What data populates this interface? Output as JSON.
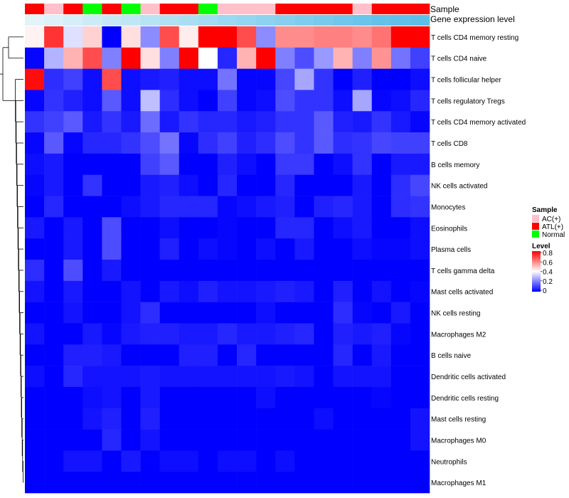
{
  "chart_data": {
    "type": "heatmap",
    "annotation_titles": [
      "Sample",
      "Gene expression level"
    ],
    "columns": 21,
    "sample_groups": [
      "ATL(+)",
      "AC(+)",
      "ATL(+)",
      "Normal",
      "ATL(+)",
      "Normal",
      "AC(+)",
      "ATL(+)",
      "ATL(+)",
      "Normal",
      "AC(+)",
      "AC(+)",
      "AC(+)",
      "ATL(+)",
      "ATL(+)",
      "ATL(+)",
      "ATL(+)",
      "AC(+)",
      "ATL(+)",
      "ATL(+)",
      "ATL(+)"
    ],
    "expression_band": [
      0.05,
      0.1,
      0.15,
      0.2,
      0.25,
      0.3,
      0.35,
      0.4,
      0.45,
      0.5,
      0.55,
      0.6,
      0.65,
      0.7,
      0.75,
      0.8,
      0.85,
      0.9,
      0.95,
      0.97,
      1.0
    ],
    "rows": [
      "T cells CD4 memory resting",
      "T cells CD4 naive",
      "T cells follicular helper",
      "T cells regulatory  Tregs",
      "T cells CD4 memory activated",
      "T cells CD8",
      "B cells memory",
      "NK cells activated",
      "Monocytes",
      "Eosinophils",
      "Plasma cells",
      "T cells gamma delta",
      "Mast cells activated",
      "NK cells resting",
      "Macrophages M2",
      "B cells naive",
      "Dendritic cells activated",
      "Dendritic cells resting",
      "Mast cells resting",
      "Macrophages M0",
      "Neutrophils",
      "Macrophages M1"
    ],
    "values": [
      [
        0.42,
        0.72,
        0.35,
        0.47,
        0.0,
        0.45,
        0.22,
        0.68,
        0.43,
        0.82,
        0.85,
        0.68,
        0.22,
        0.58,
        0.58,
        0.6,
        0.6,
        0.58,
        0.62,
        0.82,
        0.82
      ],
      [
        0.01,
        0.28,
        0.52,
        0.68,
        0.2,
        0.8,
        0.45,
        0.2,
        0.8,
        0.4,
        0.06,
        0.52,
        0.8,
        0.2,
        0.12,
        0.24,
        0.52,
        0.2,
        0.57,
        0.18,
        0.1
      ],
      [
        0.78,
        0.07,
        0.1,
        0.02,
        0.68,
        0.02,
        0.04,
        0.05,
        0.02,
        0.02,
        0.18,
        0.01,
        0.01,
        0.11,
        0.26,
        0.08,
        0.0,
        0.05,
        0.0,
        0.0,
        0.02
      ],
      [
        0.01,
        0.08,
        0.05,
        0.02,
        0.14,
        0.02,
        0.3,
        0.07,
        0.02,
        0.0,
        0.1,
        0.01,
        0.02,
        0.12,
        0.08,
        0.08,
        0.02,
        0.26,
        0.01,
        0.02,
        0.06
      ],
      [
        0.08,
        0.1,
        0.14,
        0.04,
        0.08,
        0.04,
        0.17,
        0.04,
        0.08,
        0.06,
        0.06,
        0.04,
        0.05,
        0.08,
        0.08,
        0.14,
        0.05,
        0.04,
        0.08,
        0.04,
        0.01
      ],
      [
        0.01,
        0.14,
        0.01,
        0.06,
        0.06,
        0.08,
        0.12,
        0.18,
        0.01,
        0.07,
        0.1,
        0.05,
        0.07,
        0.12,
        0.08,
        0.14,
        0.07,
        0.08,
        0.11,
        0.1,
        0.1
      ],
      [
        0.02,
        0.04,
        0.0,
        0.0,
        0.0,
        0.0,
        0.1,
        0.14,
        0.0,
        0.0,
        0.05,
        0.02,
        0.0,
        0.09,
        0.09,
        0.0,
        0.02,
        0.08,
        0.0,
        0.04,
        0.04
      ],
      [
        0.01,
        0.04,
        0.0,
        0.08,
        0.0,
        0.0,
        0.04,
        0.05,
        0.02,
        0.0,
        0.06,
        0.0,
        0.0,
        0.06,
        0.0,
        0.0,
        0.0,
        0.04,
        0.0,
        0.07,
        0.11
      ],
      [
        0.0,
        0.06,
        0.0,
        0.0,
        0.0,
        0.02,
        0.04,
        0.06,
        0.06,
        0.06,
        0.01,
        0.02,
        0.04,
        0.05,
        0.0,
        0.05,
        0.06,
        0.04,
        0.0,
        0.07,
        0.08
      ],
      [
        0.04,
        0.0,
        0.04,
        0.0,
        0.12,
        0.0,
        0.0,
        0.02,
        0.0,
        0.0,
        0.01,
        0.0,
        0.0,
        0.06,
        0.06,
        0.0,
        0.02,
        0.04,
        0.0,
        0.0,
        0.02
      ],
      [
        0.0,
        0.0,
        0.04,
        0.0,
        0.12,
        0.0,
        0.0,
        0.05,
        0.0,
        0.02,
        0.01,
        0.0,
        0.02,
        0.0,
        0.04,
        0.0,
        0.0,
        0.02,
        0.01,
        0.01,
        0.02
      ],
      [
        0.07,
        0.0,
        0.12,
        0.0,
        0.04,
        0.0,
        0.0,
        0.0,
        0.0,
        0.0,
        0.0,
        0.0,
        0.0,
        0.0,
        0.0,
        0.0,
        0.0,
        0.0,
        0.0,
        0.0,
        0.0
      ],
      [
        0.03,
        0.0,
        0.04,
        0.0,
        0.0,
        0.03,
        0.0,
        0.04,
        0.02,
        0.05,
        0.03,
        0.03,
        0.04,
        0.05,
        0.04,
        0.0,
        0.05,
        0.0,
        0.03,
        0.0,
        0.01
      ],
      [
        0.0,
        0.0,
        0.03,
        0.0,
        0.0,
        0.03,
        0.07,
        0.0,
        0.0,
        0.0,
        0.0,
        0.0,
        0.02,
        0.0,
        0.0,
        0.0,
        0.07,
        0.01,
        0.0,
        0.04,
        0.0
      ],
      [
        0.03,
        0.0,
        0.0,
        0.04,
        0.01,
        0.04,
        0.05,
        0.05,
        0.04,
        0.04,
        0.06,
        0.04,
        0.04,
        0.05,
        0.06,
        0.0,
        0.05,
        0.04,
        0.05,
        0.01,
        0.0
      ],
      [
        0.0,
        0.0,
        0.05,
        0.05,
        0.04,
        0.0,
        0.0,
        0.0,
        0.05,
        0.05,
        0.0,
        0.06,
        0.0,
        0.0,
        0.0,
        0.0,
        0.06,
        0.0,
        0.04,
        0.0,
        0.0
      ],
      [
        0.02,
        0.0,
        0.06,
        0.03,
        0.03,
        0.03,
        0.04,
        0.03,
        0.03,
        0.03,
        0.03,
        0.03,
        0.03,
        0.04,
        0.03,
        0.0,
        0.03,
        0.03,
        0.03,
        0.0,
        0.0
      ],
      [
        0.0,
        0.0,
        0.0,
        0.02,
        0.03,
        0.0,
        0.04,
        0.0,
        0.0,
        0.0,
        0.0,
        0.0,
        0.02,
        0.0,
        0.0,
        0.0,
        0.0,
        0.0,
        0.01,
        0.0,
        0.0
      ],
      [
        0.0,
        0.0,
        0.0,
        0.03,
        0.05,
        0.0,
        0.05,
        0.0,
        0.0,
        0.0,
        0.0,
        0.0,
        0.0,
        0.0,
        0.0,
        0.02,
        0.0,
        0.0,
        0.0,
        0.0,
        0.03
      ],
      [
        0.0,
        0.0,
        0.0,
        0.0,
        0.06,
        0.0,
        0.03,
        0.0,
        0.0,
        0.0,
        0.0,
        0.0,
        0.0,
        0.0,
        0.0,
        0.0,
        0.0,
        0.0,
        0.0,
        0.0,
        0.03
      ],
      [
        0.0,
        0.0,
        0.03,
        0.03,
        0.0,
        0.04,
        0.0,
        0.02,
        0.02,
        0.0,
        0.02,
        0.02,
        0.0,
        0.02,
        0.0,
        0.0,
        0.0,
        0.0,
        0.0,
        0.0,
        0.0
      ],
      [
        0.0,
        0.0,
        0.0,
        0.0,
        0.0,
        0.0,
        0.0,
        0.0,
        0.0,
        0.0,
        0.0,
        0.0,
        0.0,
        0.0,
        0.0,
        0.0,
        0.0,
        0.0,
        0.0,
        0.0,
        0.0
      ]
    ],
    "legend": {
      "sample_title": "Sample",
      "sample_items": [
        {
          "label": "AC(+)",
          "color": "#FFC0CB"
        },
        {
          "label": "ATL(+)",
          "color": "#FF0000"
        },
        {
          "label": "Normal",
          "color": "#00FF00"
        }
      ],
      "level_title": "Level",
      "level_ticks": [
        "0.8",
        "0.6",
        "0.4",
        "0.2",
        "0"
      ],
      "level_range": [
        0,
        0.8
      ]
    },
    "colors": {
      "low": "#0000FF",
      "mid": "#FFFFFF",
      "high": "#FF0000",
      "band_low": "#EAF6FB",
      "band_high": "#5BBFE8"
    }
  }
}
